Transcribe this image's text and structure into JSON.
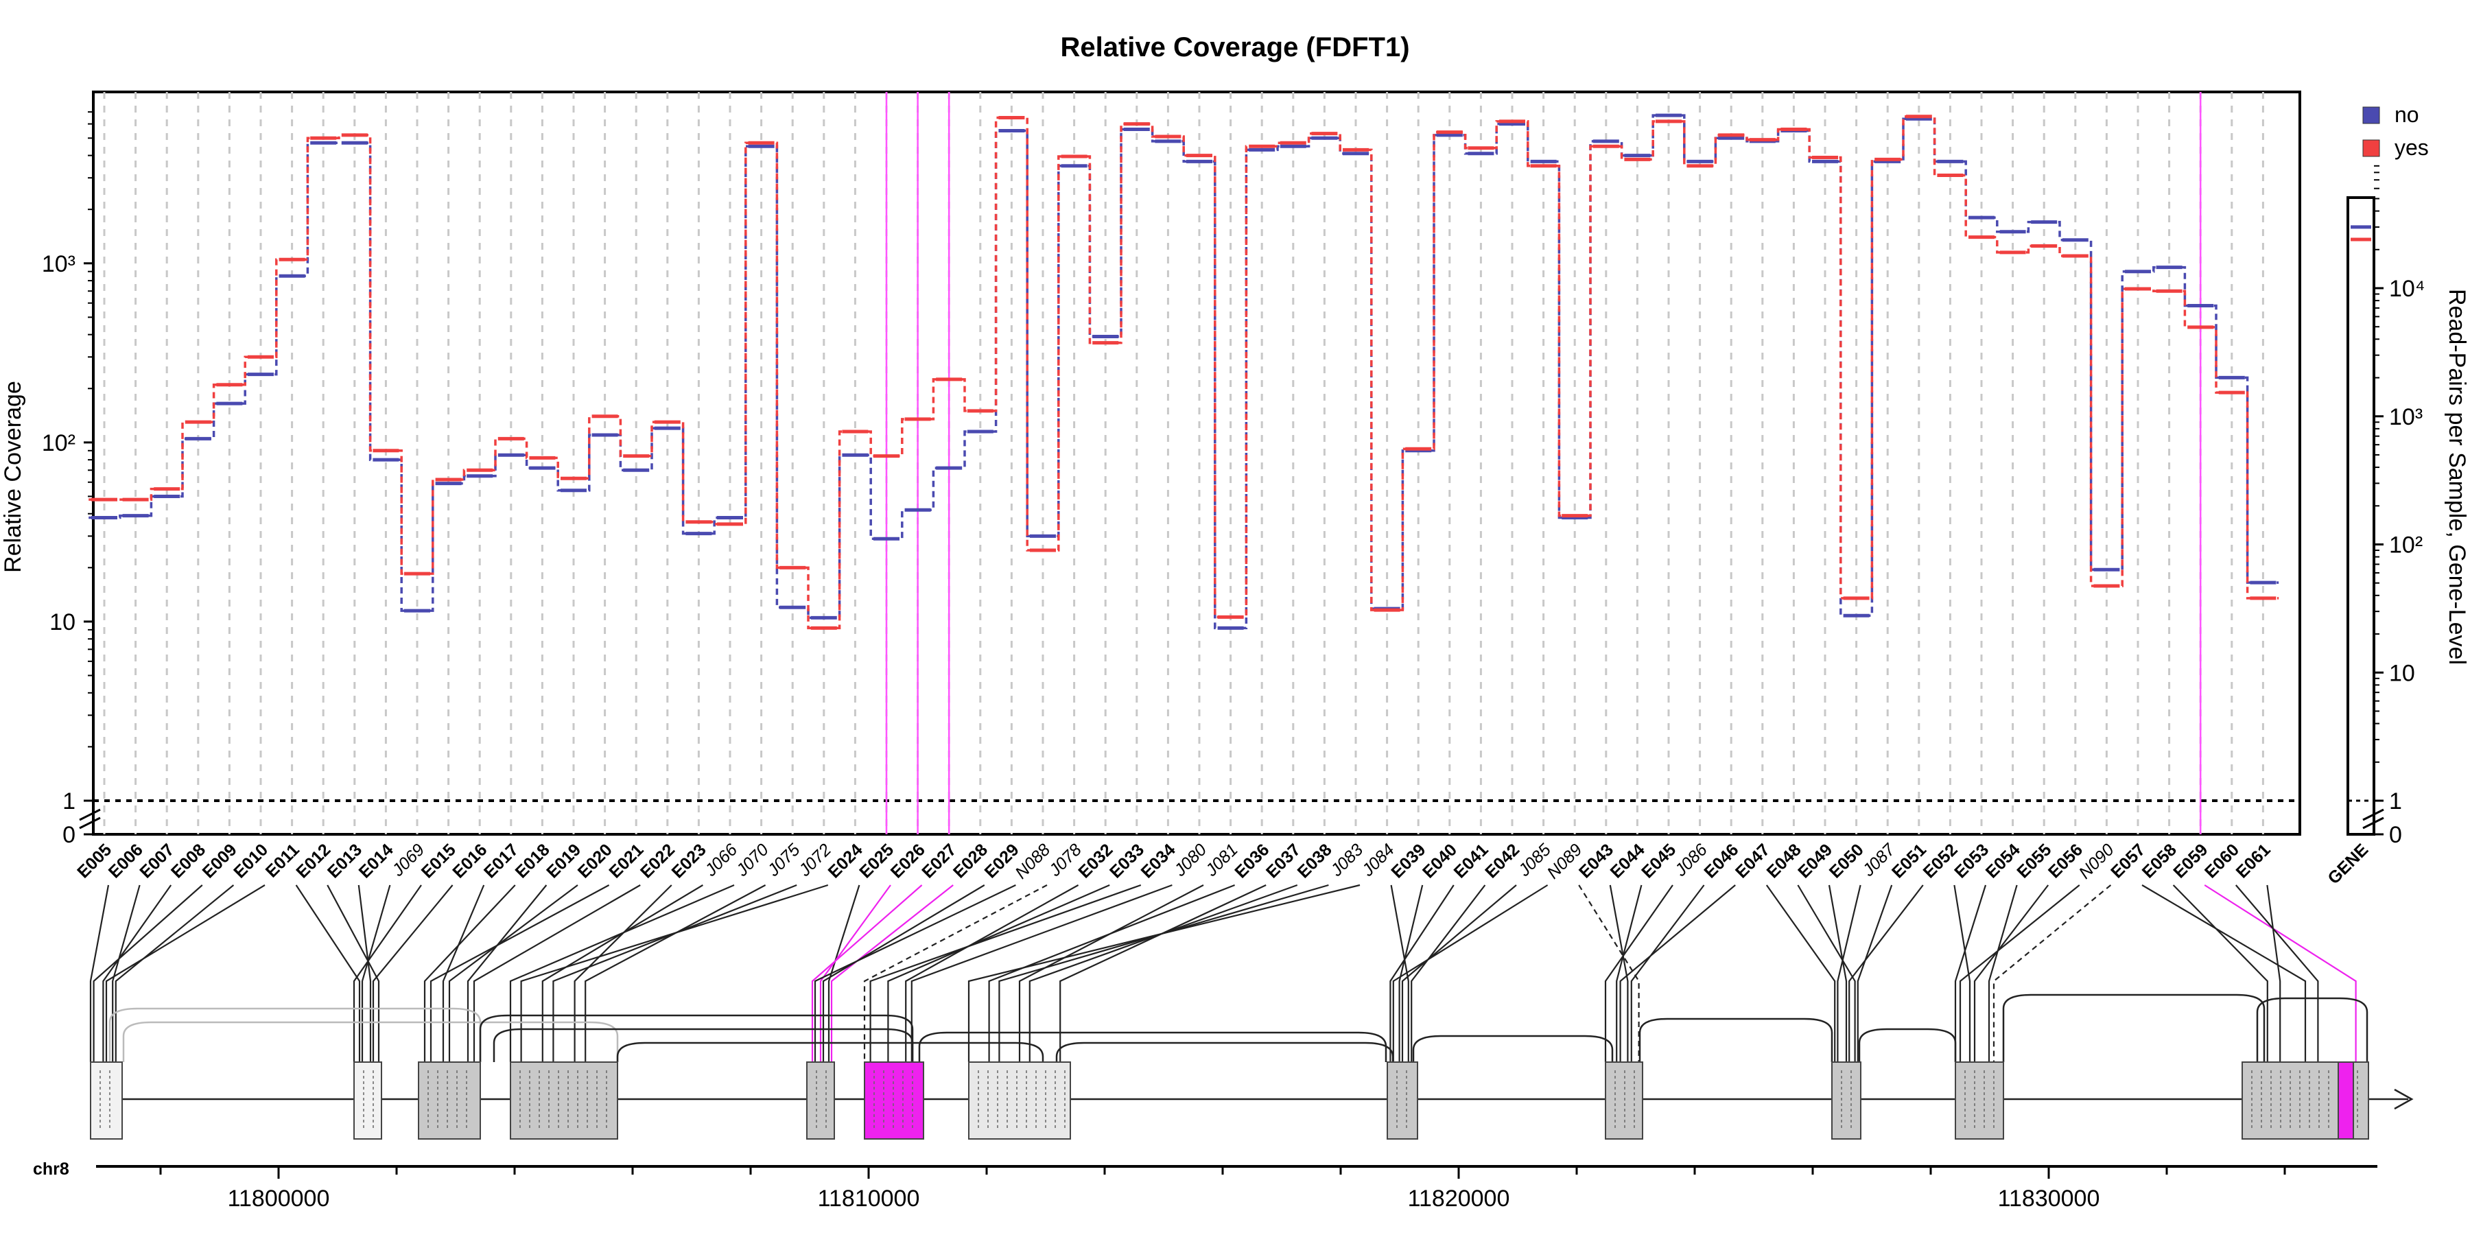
{
  "chart_data": {
    "type": "line",
    "title": "Relative Coverage (FDFT1)",
    "ylabel": "Relative Coverage",
    "y2label": "Read-Pairs per Sample, Gene-Level",
    "yscale": "log",
    "ylim": [
      1,
      8000
    ],
    "yticks": [
      "1",
      "10",
      "10²",
      "10³"
    ],
    "yzero": "0",
    "y2ticks": [
      "1",
      "10",
      "10²",
      "10³",
      "10⁴"
    ],
    "y2zero": "0",
    "grid": true,
    "legend_position": "top-right",
    "categories": [
      "E005",
      "E006",
      "E007",
      "E008",
      "E009",
      "E010",
      "E011",
      "E012",
      "E013",
      "E014",
      "J069",
      "E015",
      "E016",
      "E017",
      "E018",
      "E019",
      "E020",
      "E021",
      "E022",
      "E023",
      "J066",
      "J070",
      "J075",
      "J072",
      "E024",
      "E025",
      "E026",
      "E027",
      "E028",
      "E029",
      "N088",
      "J078",
      "E032",
      "E033",
      "E034",
      "J080",
      "J081",
      "E036",
      "E037",
      "E038",
      "J083",
      "J084",
      "E039",
      "E040",
      "E041",
      "E042",
      "J085",
      "N089",
      "E043",
      "E044",
      "E045",
      "J086",
      "E046",
      "E047",
      "E048",
      "E049",
      "E050",
      "J087",
      "E051",
      "E052",
      "E053",
      "E054",
      "E055",
      "E056",
      "N090",
      "E057",
      "E058",
      "E059",
      "E060",
      "E061"
    ],
    "gene_label": "GENE",
    "italic_categories": [
      "J069",
      "J066",
      "J070",
      "J075",
      "J072",
      "N088",
      "J078",
      "J080",
      "J081",
      "J083",
      "J084",
      "J085",
      "N089",
      "J086",
      "J087",
      "N090"
    ],
    "highlight_categories": [
      "E025",
      "E026",
      "E027",
      "E059"
    ],
    "series": [
      {
        "name": "no",
        "color": "#4a4ab0",
        "values": [
          38,
          39,
          50,
          105,
          165,
          240,
          850,
          4700,
          4700,
          80,
          11.5,
          59,
          65,
          85,
          72,
          54,
          110,
          70,
          120,
          31,
          38,
          4500,
          12,
          10.5,
          85,
          29,
          42,
          72,
          115,
          5500,
          30,
          3500,
          390,
          5600,
          4800,
          3700,
          9.2,
          4300,
          4500,
          5000,
          4100,
          11.8,
          90,
          5200,
          4100,
          6000,
          3700,
          38,
          4800,
          4000,
          6700,
          3700,
          5000,
          4800,
          5500,
          3700,
          10.8,
          3700,
          6400,
          3700,
          1800,
          1500,
          1700,
          1350,
          19.5,
          900,
          950,
          580,
          230,
          16.5
        ],
        "gene_value": 30000
      },
      {
        "name": "yes",
        "color": "#f04040",
        "values": [
          48,
          48,
          55,
          130,
          210,
          300,
          1050,
          5000,
          5200,
          90,
          18.5,
          62,
          70,
          105,
          82,
          63,
          140,
          84,
          130,
          36,
          35,
          4700,
          20,
          9.2,
          115,
          84,
          135,
          225,
          150,
          6500,
          25,
          3950,
          360,
          6000,
          5100,
          4000,
          10.6,
          4500,
          4700,
          5300,
          4300,
          11.6,
          92,
          5400,
          4400,
          6200,
          3500,
          39,
          4500,
          3800,
          6200,
          3500,
          5200,
          4900,
          5600,
          3900,
          13.5,
          3800,
          6600,
          3100,
          1400,
          1150,
          1250,
          1100,
          15.8,
          720,
          700,
          440,
          190,
          13.5
        ],
        "gene_value": 24000
      }
    ],
    "genome": {
      "chromosome": "chr8",
      "xticks": [
        "11800000",
        "11810000",
        "11820000",
        "11830000"
      ]
    }
  },
  "legend": {
    "items": [
      {
        "label": "no",
        "color": "#4a4ab0"
      },
      {
        "label": "yes",
        "color": "#f04040"
      }
    ]
  }
}
